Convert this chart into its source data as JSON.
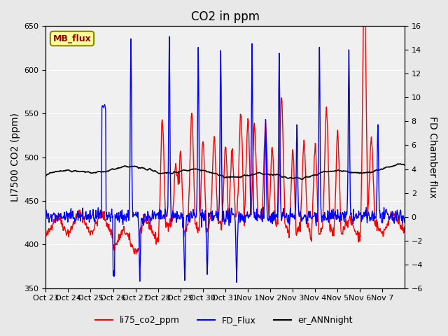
{
  "title": "CO2 in ppm",
  "ylabel_left": "LI7500 CO2 (ppm)",
  "ylabel_right": "FD Chamber flux",
  "ylim_left": [
    350,
    650
  ],
  "ylim_right": [
    -6,
    16
  ],
  "yticks_left": [
    350,
    400,
    450,
    500,
    550,
    600,
    650
  ],
  "yticks_right": [
    -6,
    -4,
    -2,
    0,
    2,
    4,
    6,
    8,
    10,
    12,
    14,
    16
  ],
  "xtick_labels": [
    "Oct 23",
    "Oct 24",
    "Oct 25",
    "Oct 26",
    "Oct 27",
    "Oct 28",
    "Oct 29",
    "Oct 30",
    "Oct 31",
    "Nov 1",
    "Nov 2",
    "Nov 3",
    "Nov 4",
    "Nov 5",
    "Nov 6",
    "Nov 7"
  ],
  "color_red": "#ff0000",
  "color_blue": "#0000ff",
  "color_black": "#000000",
  "legend_labels": [
    "li75_co2_ppm",
    "FD_Flux",
    "er_ANNnight"
  ],
  "mb_flux_box_color": "#ffff99",
  "mb_flux_text_color": "#990000",
  "background_color": "#e8e8e8",
  "plot_bg_color": "#f0f0f0",
  "title_fontsize": 12,
  "axis_fontsize": 10,
  "tick_fontsize": 8,
  "legend_fontsize": 9,
  "linewidth_thin": 1.0,
  "linewidth_medium": 1.2
}
